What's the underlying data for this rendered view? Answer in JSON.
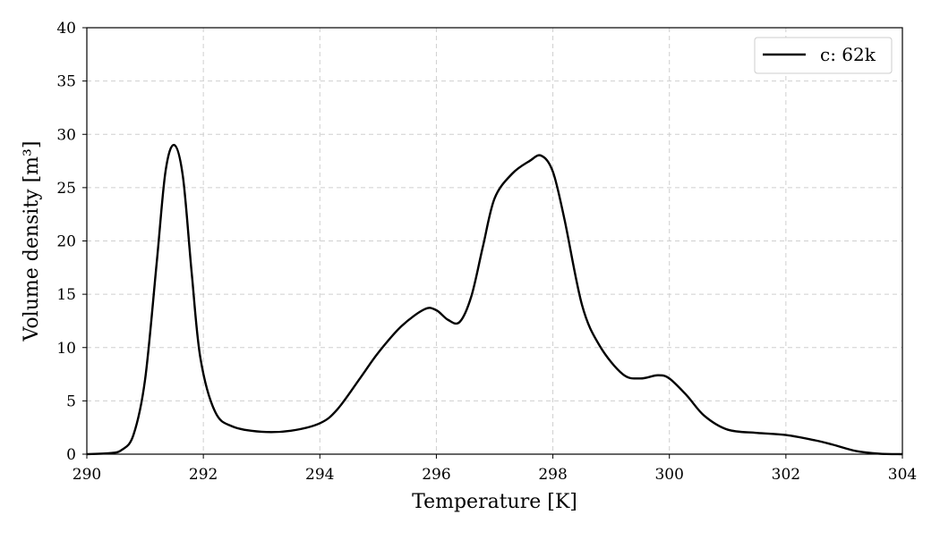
{
  "chart_data": {
    "type": "line",
    "title": "",
    "xlabel": "Temperature [K]",
    "ylabel": "Volume density [m³]",
    "xlim": [
      290,
      304
    ],
    "ylim": [
      0,
      40
    ],
    "xticks": [
      290,
      292,
      294,
      296,
      298,
      300,
      302,
      304
    ],
    "yticks": [
      0,
      5,
      10,
      15,
      20,
      25,
      30,
      35,
      40
    ],
    "grid": true,
    "legend_position": "top-right",
    "series": [
      {
        "name": "c: 62k",
        "color": "#000000",
        "x": [
          290.0,
          290.4,
          290.6,
          290.8,
          291.0,
          291.2,
          291.35,
          291.5,
          291.65,
          291.8,
          291.95,
          292.2,
          292.5,
          293.0,
          293.5,
          294.0,
          294.3,
          294.7,
          295.0,
          295.4,
          295.8,
          296.0,
          296.2,
          296.4,
          296.6,
          296.8,
          297.0,
          297.3,
          297.6,
          297.8,
          298.0,
          298.2,
          298.5,
          298.8,
          299.2,
          299.5,
          299.8,
          300.0,
          300.3,
          300.6,
          301.0,
          301.5,
          302.0,
          302.5,
          302.8,
          303.2,
          303.6,
          304.0
        ],
        "y": [
          0.0,
          0.1,
          0.4,
          1.8,
          7.0,
          18.0,
          26.5,
          29.0,
          26.0,
          17.0,
          9.0,
          4.0,
          2.6,
          2.1,
          2.2,
          2.9,
          4.2,
          7.2,
          9.5,
          12.0,
          13.6,
          13.5,
          12.6,
          12.4,
          14.8,
          19.5,
          24.0,
          26.3,
          27.5,
          28.0,
          26.5,
          22.0,
          14.0,
          10.2,
          7.5,
          7.1,
          7.4,
          7.1,
          5.5,
          3.6,
          2.3,
          2.0,
          1.8,
          1.3,
          0.9,
          0.3,
          0.05,
          0.0
        ]
      }
    ]
  }
}
